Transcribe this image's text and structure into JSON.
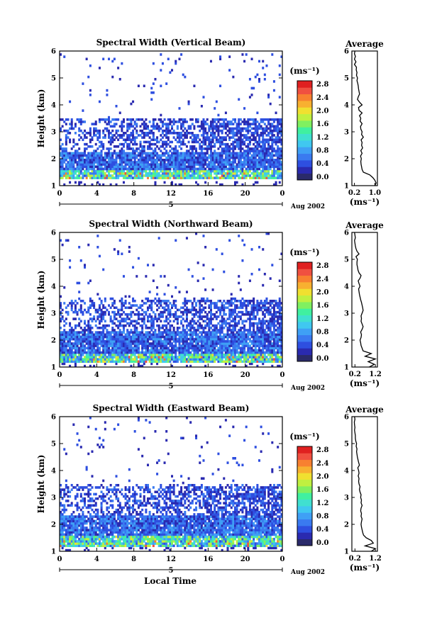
{
  "figure": {
    "xlabel": "Local Time",
    "colorbar_unit": "(ms⁻¹)",
    "avg_title": "Average",
    "avg_xlabel": "(ms⁻¹)"
  },
  "colors": {
    "scale": [
      "#2a2a6a",
      "#2a2ab0",
      "#2e4fe0",
      "#3a7af0",
      "#3fa0f5",
      "#40c8f0",
      "#40e0d0",
      "#40f0a0",
      "#80f060",
      "#c0f040",
      "#f0e030",
      "#f8b030",
      "#f88030",
      "#f05040",
      "#e02020"
    ]
  },
  "chart_data": [
    {
      "type": "heatmap",
      "title": "Spectral Width (Vertical Beam)",
      "ylabel": "Height (km)",
      "ylim": [
        1,
        6
      ],
      "yticks": [
        "1",
        "2",
        "3",
        "4",
        "5",
        "6"
      ],
      "xlim": [
        0,
        24
      ],
      "xticks": [
        "0",
        "4",
        "8",
        "12",
        "16",
        "20",
        "0"
      ],
      "day_marker": "5",
      "date_label": "Aug 2002",
      "colorbar_ticks": [
        "0.0",
        "0.4",
        "0.8",
        "1.2",
        "1.6",
        "2.0",
        "2.4",
        "2.8"
      ],
      "colorbar_range": [
        0,
        3.0
      ],
      "profile": {
        "title": "Average",
        "xticks": [
          "0.2",
          "1.0"
        ],
        "xlim": [
          0.1,
          1.1
        ],
        "height": [
          1.0,
          1.1,
          1.2,
          1.3,
          1.4,
          1.5,
          1.6,
          1.7,
          1.8,
          1.9,
          2.0,
          2.1,
          2.2,
          2.3,
          2.4,
          2.5,
          2.6,
          2.7,
          2.8,
          2.9,
          3.0,
          3.1,
          3.2,
          3.3,
          3.4,
          3.5,
          3.6,
          3.7,
          3.8,
          3.9,
          4.0,
          4.1,
          4.2,
          4.3,
          4.4,
          4.5,
          4.6,
          4.7,
          4.8,
          4.9,
          5.0,
          5.1,
          5.2,
          5.3,
          5.4,
          5.5,
          5.6,
          5.7,
          5.8,
          5.9,
          6.0
        ],
        "width": [
          1.0,
          1.05,
          1.0,
          0.92,
          0.8,
          0.55,
          0.5,
          0.48,
          0.46,
          0.45,
          0.47,
          0.44,
          0.5,
          0.45,
          0.52,
          0.48,
          0.5,
          0.46,
          0.55,
          0.48,
          0.5,
          0.45,
          0.44,
          0.5,
          0.42,
          0.45,
          0.4,
          0.5,
          0.38,
          0.36,
          0.5,
          0.4,
          0.32,
          0.35,
          0.4,
          0.38,
          0.36,
          0.35,
          0.33,
          0.3,
          0.32,
          0.28,
          0.3,
          0.27,
          0.28,
          0.2,
          0.26,
          0.2,
          0.24,
          0.2,
          0.22
        ]
      },
      "seed": 11,
      "cells": {
        "low_band": [
          1.25,
          2.25
        ],
        "mid_band": [
          2.25,
          3.5
        ],
        "upper_band_top": 3.5,
        "spike_rows": [
          3.3,
          3.4
        ]
      }
    },
    {
      "type": "heatmap",
      "title": "Spectral Width (Northward Beam)",
      "ylabel": "Height (km)",
      "ylim": [
        1,
        6
      ],
      "yticks": [
        "1",
        "2",
        "3",
        "4",
        "5",
        "6"
      ],
      "xlim": [
        0,
        24
      ],
      "xticks": [
        "0",
        "4",
        "8",
        "12",
        "16",
        "20",
        "0"
      ],
      "day_marker": "5",
      "date_label": "Aug 2002",
      "colorbar_ticks": [
        "0.0",
        "0.4",
        "0.8",
        "1.2",
        "1.6",
        "2.0",
        "2.4",
        "2.8"
      ],
      "colorbar_range": [
        0,
        3.0
      ],
      "profile": {
        "title": "Average",
        "xticks": [
          "0.2",
          "1.2"
        ],
        "xlim": [
          0.05,
          1.3
        ],
        "height": [
          1.0,
          1.1,
          1.2,
          1.3,
          1.4,
          1.5,
          1.6,
          1.7,
          1.8,
          1.9,
          2.0,
          2.1,
          2.2,
          2.3,
          2.4,
          2.5,
          2.6,
          2.7,
          2.8,
          2.9,
          3.0,
          3.1,
          3.2,
          3.3,
          3.4,
          3.5,
          3.6,
          3.7,
          3.8,
          3.9,
          4.0,
          4.1,
          4.2,
          4.3,
          4.4,
          4.5,
          4.6,
          4.7,
          4.8,
          4.9,
          5.0,
          5.1,
          5.2,
          5.3,
          5.4,
          5.5,
          5.6,
          5.7,
          5.8,
          5.9,
          6.0
        ],
        "width": [
          0.9,
          1.15,
          0.85,
          1.2,
          0.7,
          1.0,
          0.6,
          0.55,
          0.5,
          0.48,
          0.45,
          0.5,
          0.52,
          0.48,
          0.55,
          0.6,
          0.55,
          0.5,
          0.52,
          0.5,
          0.55,
          0.6,
          0.58,
          0.55,
          0.52,
          0.48,
          0.45,
          0.42,
          0.4,
          0.38,
          0.45,
          0.4,
          0.36,
          0.45,
          0.5,
          0.4,
          0.35,
          0.33,
          0.3,
          0.3,
          0.32,
          0.25,
          0.4,
          0.3,
          0.25,
          0.22,
          0.2,
          0.18,
          0.22,
          0.2,
          0.18
        ]
      },
      "seed": 23,
      "cells": {
        "low_band": [
          1.15,
          2.3
        ],
        "mid_band": [
          2.3,
          3.5
        ],
        "upper_band_top": 3.5,
        "spike_rows": [
          3.4,
          3.5
        ]
      }
    },
    {
      "type": "heatmap",
      "title": "Spectral Width (Eastward Beam)",
      "ylabel": "Height (km)",
      "ylim": [
        1,
        6
      ],
      "yticks": [
        "1",
        "2",
        "3",
        "4",
        "5",
        "6"
      ],
      "xlim": [
        0,
        24
      ],
      "xticks": [
        "0",
        "4",
        "8",
        "12",
        "16",
        "20",
        "0"
      ],
      "day_marker": "5",
      "date_label": "Aug 2002",
      "colorbar_ticks": [
        "0.0",
        "0.4",
        "0.8",
        "1.2",
        "1.6",
        "2.0",
        "2.4",
        "2.8"
      ],
      "colorbar_range": [
        0,
        3.0
      ],
      "profile": {
        "title": "Average",
        "xticks": [
          "0.2",
          "1.2"
        ],
        "xlim": [
          0.05,
          1.3
        ],
        "height": [
          1.0,
          1.1,
          1.2,
          1.3,
          1.4,
          1.5,
          1.6,
          1.7,
          1.8,
          1.9,
          2.0,
          2.1,
          2.2,
          2.3,
          2.4,
          2.5,
          2.6,
          2.7,
          2.8,
          2.9,
          3.0,
          3.1,
          3.2,
          3.3,
          3.4,
          3.5,
          3.6,
          3.7,
          3.8,
          3.9,
          4.0,
          4.1,
          4.2,
          4.3,
          4.4,
          4.5,
          4.6,
          4.7,
          4.8,
          4.9,
          5.0,
          5.1,
          5.2,
          5.3,
          5.4,
          5.5,
          5.6,
          5.7,
          5.8,
          5.9,
          6.0
        ],
        "width": [
          1.0,
          1.2,
          0.7,
          1.1,
          1.0,
          0.75,
          0.62,
          0.58,
          0.55,
          0.52,
          0.5,
          0.52,
          0.55,
          0.5,
          0.52,
          0.48,
          0.5,
          0.55,
          0.5,
          0.52,
          0.48,
          0.5,
          0.45,
          0.42,
          0.45,
          0.4,
          0.38,
          0.4,
          0.36,
          0.4,
          0.38,
          0.34,
          0.42,
          0.38,
          0.35,
          0.32,
          0.3,
          0.28,
          0.3,
          0.26,
          0.28,
          0.24,
          0.22,
          0.22,
          0.2,
          0.18,
          0.2,
          0.18,
          0.17,
          0.2,
          0.18
        ]
      },
      "seed": 37,
      "cells": {
        "low_band": [
          1.2,
          2.35
        ],
        "mid_band": [
          2.35,
          3.4
        ],
        "upper_band_top": 3.4,
        "spike_rows": [
          3.3,
          3.4
        ]
      }
    }
  ]
}
